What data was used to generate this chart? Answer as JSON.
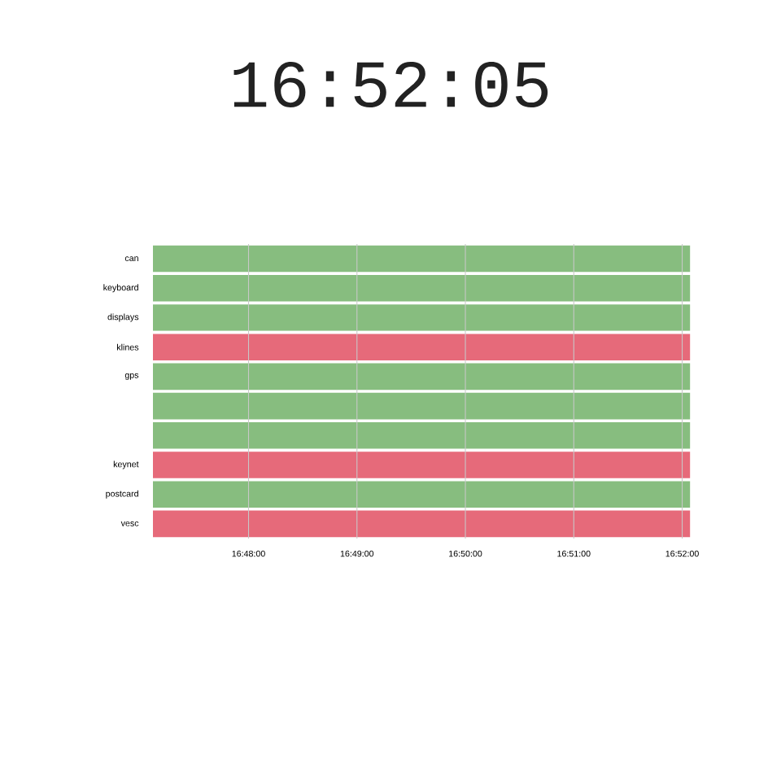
{
  "chart_data": {
    "type": "bar",
    "orientation": "horizontal",
    "title": "16:52:05",
    "categories": [
      "can",
      "keyboard",
      "displays",
      "klines",
      "gps",
      null,
      null,
      "keynet",
      "postcard",
      "vesc"
    ],
    "base": [
      16.7853,
      16.7853,
      16.7853,
      16.7853,
      16.7853,
      16.7853,
      16.7853,
      16.7853,
      16.7853,
      16.7853
    ],
    "values": [
      0.0826,
      0.0826,
      0.0826,
      0.0826,
      0.0826,
      0.0826,
      0.0826,
      0.0826,
      0.0826,
      0.0826
    ],
    "colors": [
      "#87bd7f",
      "#87bd7f",
      "#87bd7f",
      "#e66a7a",
      "#87bd7f",
      "#87bd7f",
      "#87bd7f",
      "#e66a7a",
      "#87bd7f",
      "#e66a7a"
    ],
    "xlim": [
      16.7853,
      16.8681
    ],
    "xticks": [
      {
        "value": 16.8,
        "label": "16:48:00"
      },
      {
        "value": 16.816667,
        "label": "16:49:00"
      },
      {
        "value": 16.833333,
        "label": "16:50:00"
      },
      {
        "value": 16.85,
        "label": "16:51:00"
      },
      {
        "value": 16.866667,
        "label": "16:52:00"
      }
    ],
    "grid": "x"
  }
}
